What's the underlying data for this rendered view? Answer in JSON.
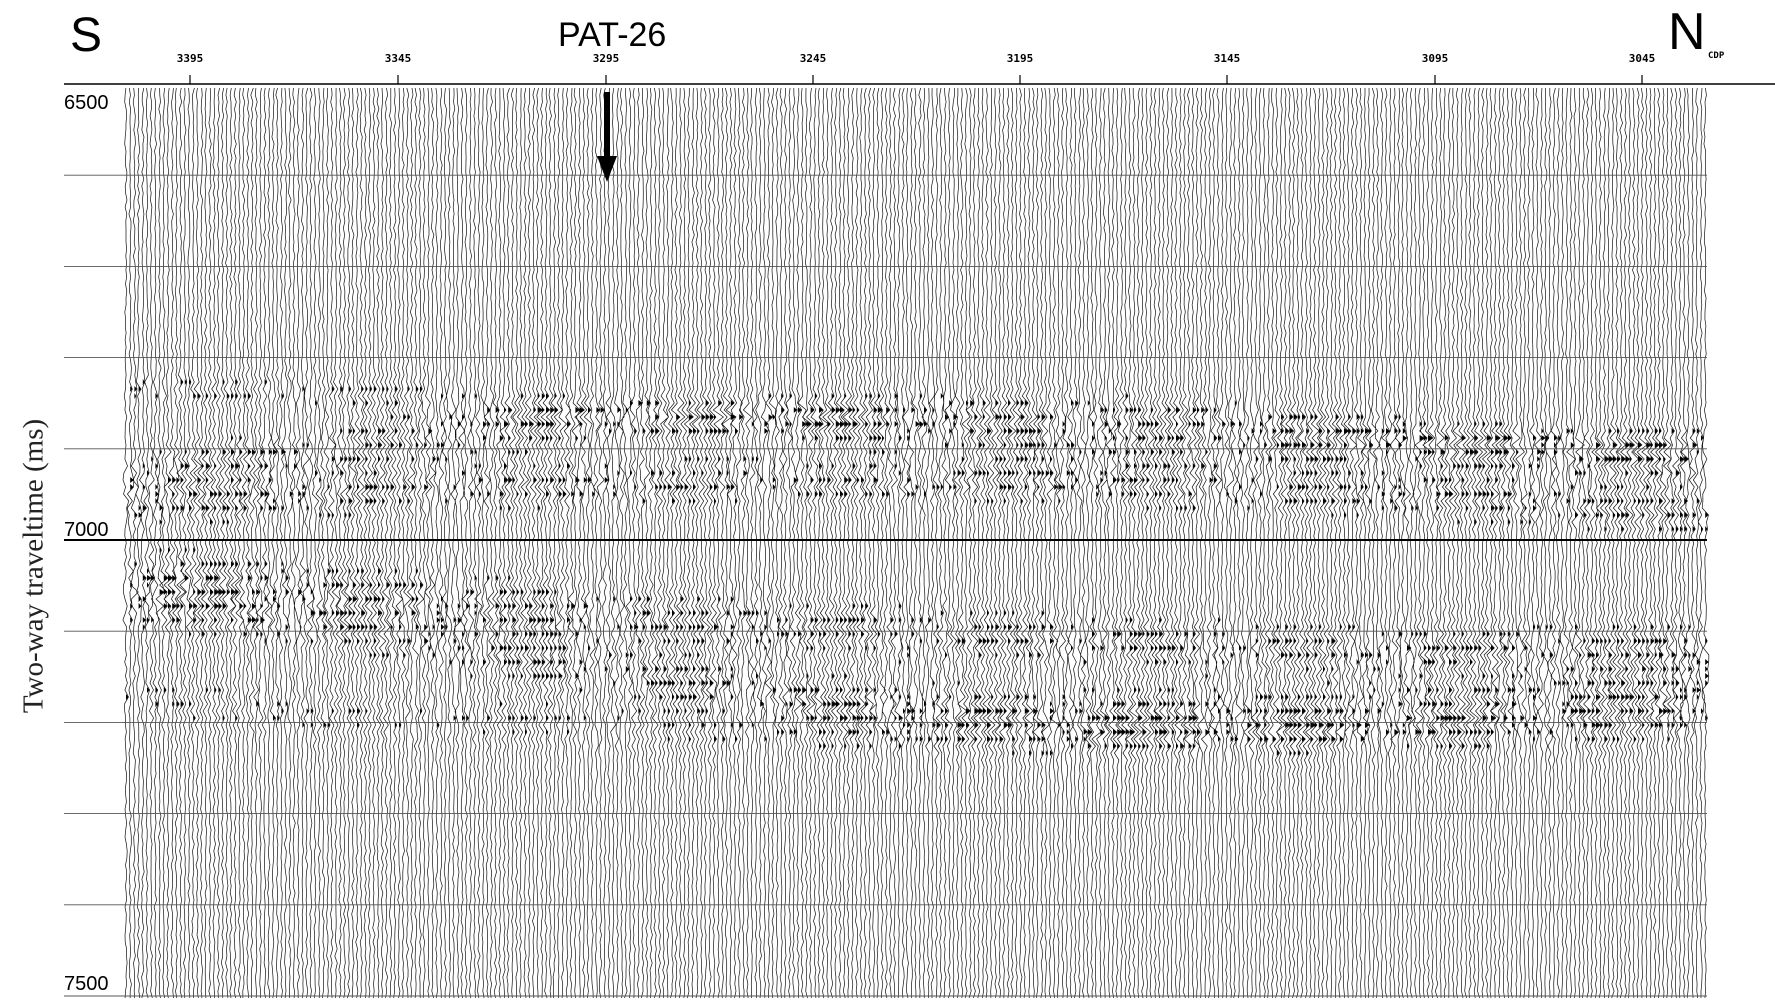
{
  "header": {
    "south": "S",
    "north": "N",
    "well": "PAT-26",
    "cdp_suffix": "CDP"
  },
  "cdp_ticks": [
    "3395",
    "3345",
    "3295",
    "3245",
    "3195",
    "3145",
    "3095",
    "3045"
  ],
  "time_axis": {
    "title": "Two-way traveltime (ms)",
    "labels": [
      "6500",
      "7000",
      "7500"
    ]
  }
}
